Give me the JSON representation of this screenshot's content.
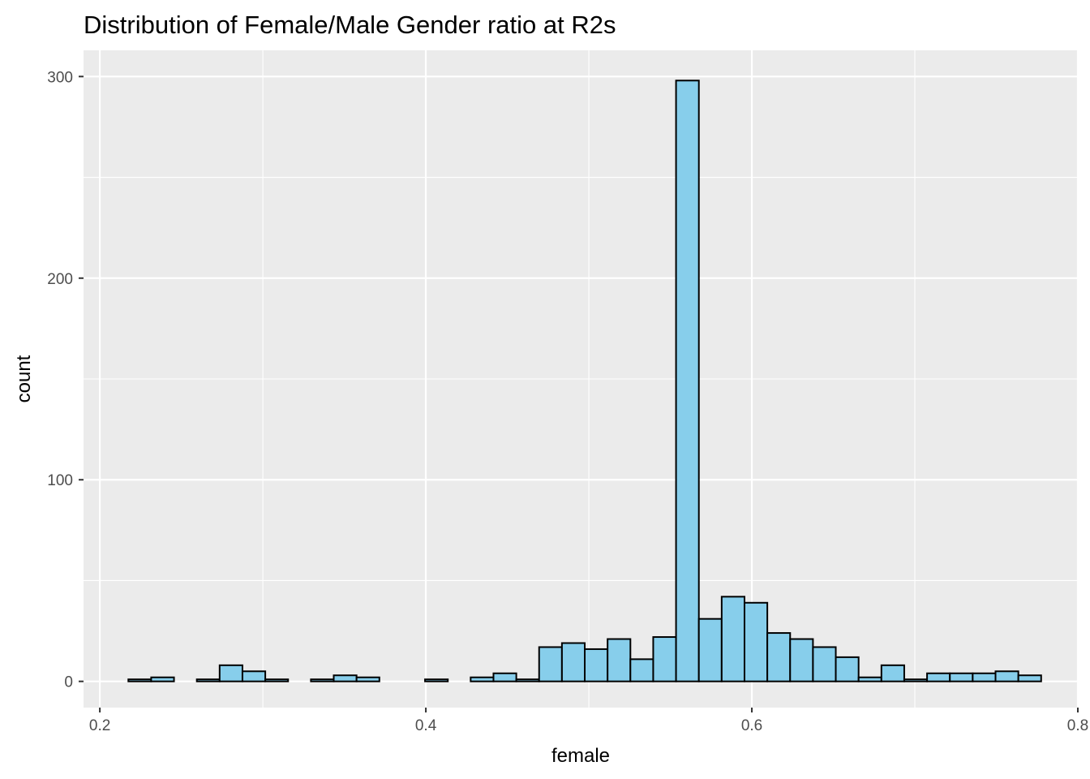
{
  "chart_data": {
    "type": "bar",
    "title": "Distribution of Female/Male Gender ratio at R2s",
    "xlabel": "female",
    "ylabel": "count",
    "xlim": [
      0.19,
      0.8
    ],
    "ylim": [
      -13,
      313
    ],
    "x_ticks": [
      {
        "value": 0.2,
        "label": "0.2"
      },
      {
        "value": 0.4,
        "label": "0.4"
      },
      {
        "value": 0.6,
        "label": "0.6"
      },
      {
        "value": 0.8,
        "label": "0.8"
      }
    ],
    "y_ticks": [
      {
        "value": 0,
        "label": "0"
      },
      {
        "value": 100,
        "label": "100"
      },
      {
        "value": 200,
        "label": "200"
      },
      {
        "value": 300,
        "label": "300"
      }
    ],
    "bin_start": 0.2175,
    "bin_width": 0.014,
    "values": [
      1,
      2,
      0,
      1,
      8,
      5,
      1,
      0,
      1,
      3,
      2,
      0,
      0,
      1,
      0,
      2,
      4,
      1,
      17,
      19,
      16,
      21,
      11,
      22,
      298,
      31,
      42,
      39,
      24,
      21,
      17,
      12,
      2,
      8,
      1,
      4,
      4,
      4,
      5,
      3
    ],
    "grid": true,
    "fill_color": "#87CEEB",
    "stroke_color": "#000000",
    "panel_background": "#EBEBEB",
    "grid_color": "#FFFFFF"
  }
}
